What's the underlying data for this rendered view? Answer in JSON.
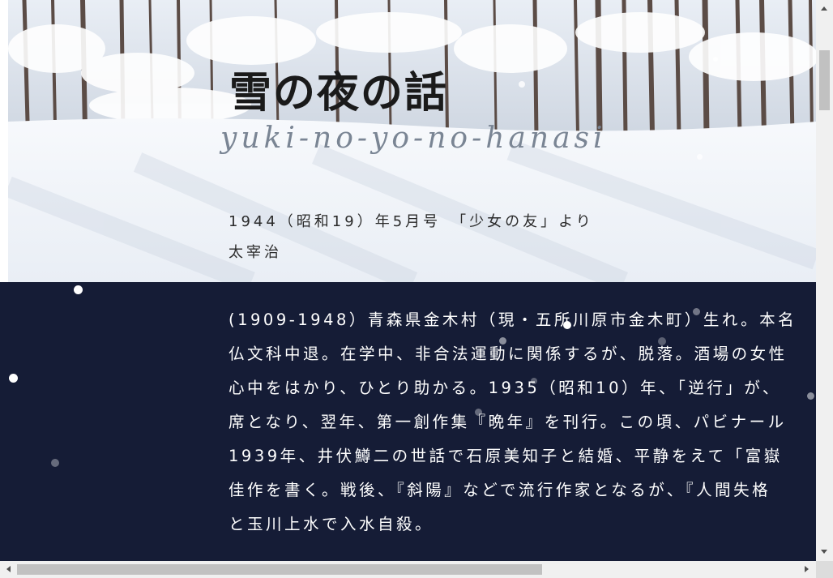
{
  "header": {
    "title": "雪の夜の話",
    "romaji": "yuki-no-yo-no-hanasi"
  },
  "meta": {
    "source": "1944（昭和19）年5月号　「少女の友」より",
    "author": "太宰治"
  },
  "bio": {
    "lines": [
      "(1909-1948）青森県金木村（現・五所川原市金木町）生れ。本名",
      "仏文科中退。在学中、非合法運動に関係するが、脱落。酒場の女性",
      "心中をはかり、ひとり助かる。1935（昭和10）年、「逆行」が、",
      "席となり、翌年、第一創作集『晩年』を刊行。この頃、パビナール",
      "1939年、井伏鱒二の世話で石原美知子と結婚、平静をえて「富嶽",
      "佳作を書く。戦後、『斜陽』などで流行作家となるが、『人間失格",
      "と玉川上水で入水自殺。"
    ]
  },
  "colors": {
    "background": "#151c36",
    "text_light": "#ffffff",
    "text_dark": "#1a1a1a",
    "romaji": "#7a8594"
  },
  "icons": {
    "scroll_up": "scroll-up-arrow-icon",
    "scroll_down": "scroll-down-arrow-icon",
    "scroll_left": "scroll-left-arrow-icon",
    "scroll_right": "scroll-right-arrow-icon"
  }
}
